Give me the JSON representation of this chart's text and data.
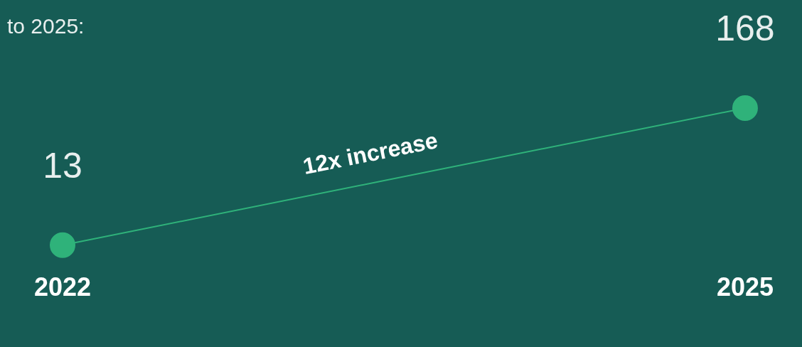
{
  "chart_data": {
    "type": "line",
    "title": "to 2025:",
    "categories": [
      "2022",
      "2025"
    ],
    "values": [
      13,
      168
    ],
    "color": "#2fb27a",
    "data_labels": true,
    "marker": "circle",
    "grid": false,
    "legend": false,
    "annotations": [
      "12x increase"
    ]
  }
}
